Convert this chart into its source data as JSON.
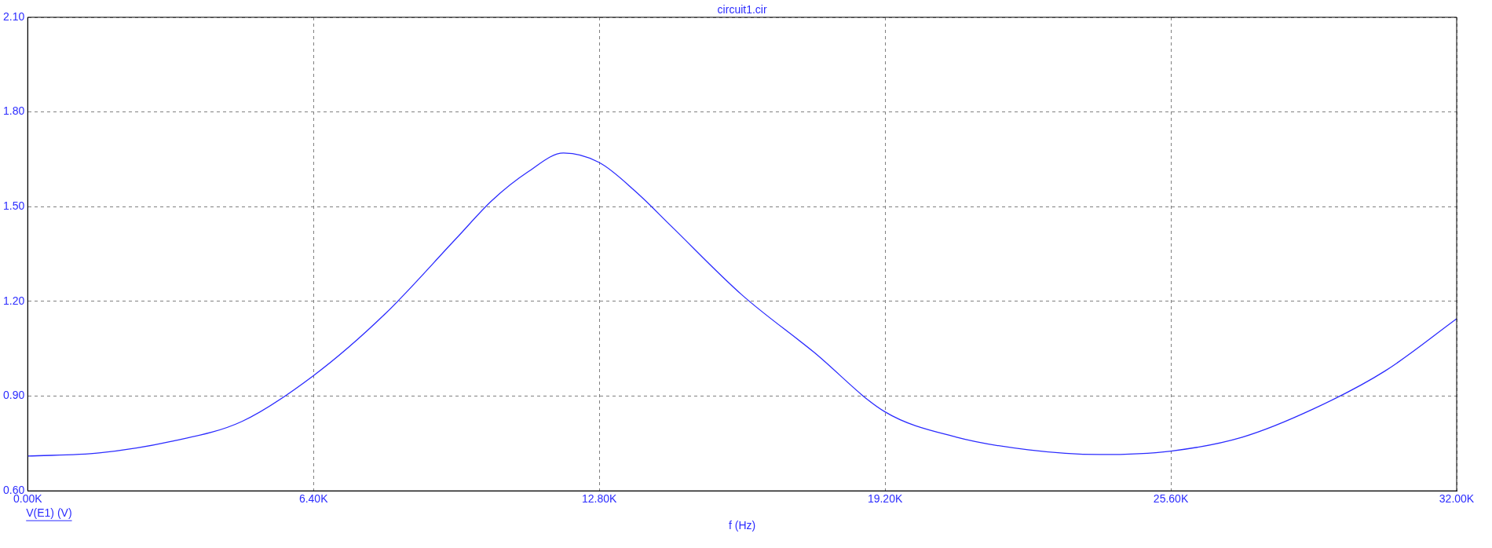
{
  "chart_data": {
    "type": "line",
    "title": "circuit1.cir",
    "xlabel": "f (Hz)",
    "annotations": [
      "V(E1) (V)"
    ],
    "series": [
      {
        "color": "#2b2bff",
        "x": [
          0,
          1600,
          3200,
          4800,
          6400,
          8000,
          9600,
          10400,
          11200,
          12000,
          12800,
          13600,
          14400,
          16000,
          17600,
          19200,
          20800,
          22400,
          24000,
          25600,
          27200,
          28800,
          30400,
          32000
        ],
        "values": [
          0.71,
          0.72,
          0.756,
          0.82,
          0.965,
          1.16,
          1.4,
          1.52,
          1.61,
          1.67,
          1.64,
          1.55,
          1.44,
          1.22,
          1.04,
          0.85,
          0.77,
          0.73,
          0.715,
          0.726,
          0.77,
          0.86,
          0.98,
          1.145
        ]
      }
    ],
    "xlim": [
      0,
      32000
    ],
    "xticks": [
      {
        "value": 0,
        "label": "0.00K"
      },
      {
        "value": 6400,
        "label": "6.40K"
      },
      {
        "value": 12800,
        "label": "12.80K"
      },
      {
        "value": 19200,
        "label": "19.20K"
      },
      {
        "value": 25600,
        "label": "25.60K"
      },
      {
        "value": 32000,
        "label": "32.00K"
      }
    ],
    "ylim": [
      0.6,
      2.1
    ],
    "yticks": [
      {
        "value": 0.6,
        "label": "0.60"
      },
      {
        "value": 0.9,
        "label": "0.90"
      },
      {
        "value": 1.2,
        "label": "1.20"
      },
      {
        "value": 1.5,
        "label": "1.50"
      },
      {
        "value": 1.8,
        "label": "1.80"
      },
      {
        "value": 2.1,
        "label": "2.10"
      }
    ],
    "grid": true,
    "legend": false,
    "marker": "none",
    "line_style": "solid"
  }
}
